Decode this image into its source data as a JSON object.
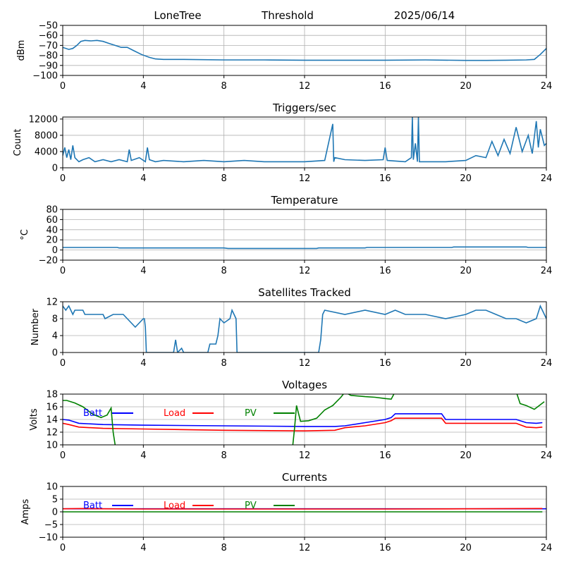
{
  "header": {
    "site": "LoneTree",
    "mode": "Threshold",
    "date": "2025/06/14"
  },
  "colors": {
    "series": "#1f77b4",
    "batt": "#0000ff",
    "load": "#ff0000",
    "pv": "#008000"
  },
  "chart_data": [
    {
      "id": "dbm",
      "type": "line",
      "title": "",
      "ylabel": "dBm",
      "xlim": [
        0,
        24
      ],
      "ylim": [
        -100,
        -50
      ],
      "xticks": [
        0,
        4,
        8,
        12,
        16,
        20,
        24
      ],
      "yticks": [
        -100,
        -90,
        -80,
        -70,
        -60,
        -50
      ],
      "ytick_labels": [
        "−100",
        "−90",
        "−80",
        "−70",
        "−60",
        "−50"
      ],
      "grid": true,
      "series": [
        {
          "color": "#1f77b4",
          "x": [
            0,
            0.3,
            0.5,
            0.7,
            0.9,
            1.1,
            1.4,
            1.7,
            2.0,
            2.3,
            2.6,
            2.9,
            3.2,
            3.5,
            3.9,
            4.3,
            4.6,
            5.0,
            6,
            8,
            10,
            12,
            14,
            16,
            18,
            20,
            21,
            22,
            23,
            23.4,
            23.7,
            24
          ],
          "y": [
            -72,
            -74,
            -73,
            -70,
            -66,
            -65,
            -65.5,
            -65,
            -66,
            -68,
            -70,
            -72,
            -72,
            -75,
            -79,
            -82,
            -83.5,
            -84,
            -84,
            -84.5,
            -84.5,
            -84.8,
            -84.8,
            -84.8,
            -84.5,
            -85,
            -85,
            -84.8,
            -84.5,
            -84,
            -79,
            -73
          ]
        }
      ]
    },
    {
      "id": "triggers",
      "type": "line",
      "title": "Triggers/sec",
      "ylabel": "Count",
      "xlim": [
        0,
        24
      ],
      "ylim": [
        0,
        12500
      ],
      "xticks": [
        0,
        4,
        8,
        12,
        16,
        20,
        24
      ],
      "yticks": [
        0,
        4000,
        8000,
        12000
      ],
      "ytick_labels": [
        "0",
        "4000",
        "8000",
        "12000"
      ],
      "grid": true,
      "series": [
        {
          "color": "#1f77b4",
          "x": [
            0,
            0.1,
            0.2,
            0.3,
            0.4,
            0.5,
            0.6,
            0.8,
            1.0,
            1.3,
            1.6,
            2.0,
            2.4,
            2.8,
            3.2,
            3.3,
            3.4,
            3.8,
            4.1,
            4.2,
            4.3,
            4.6,
            5.0,
            6.0,
            7.0,
            8.0,
            9.0,
            10.0,
            11.0,
            12.0,
            13.0,
            13.4,
            13.45,
            13.5,
            14.0,
            15.0,
            15.9,
            16.0,
            16.1,
            17.0,
            17.3,
            17.35,
            17.4,
            17.5,
            17.6,
            17.65,
            17.7,
            18.0,
            19.0,
            20.0,
            20.5,
            21.0,
            21.3,
            21.6,
            21.9,
            22.2,
            22.5,
            22.8,
            23.1,
            23.3,
            23.5,
            23.6,
            23.7,
            23.9,
            24
          ],
          "y": [
            3000,
            5000,
            2500,
            4500,
            2000,
            5500,
            2500,
            1500,
            2000,
            2500,
            1500,
            2000,
            1500,
            2000,
            1500,
            4500,
            1800,
            2500,
            1500,
            5000,
            2000,
            1500,
            1800,
            1500,
            1800,
            1500,
            1800,
            1500,
            1500,
            1500,
            1800,
            10800,
            1500,
            2500,
            2000,
            1800,
            2000,
            5000,
            1800,
            1500,
            2500,
            12500,
            2000,
            6000,
            1500,
            12500,
            1500,
            1500,
            1500,
            1800,
            3000,
            2500,
            6500,
            3000,
            7000,
            3500,
            10000,
            4000,
            8000,
            3500,
            11500,
            5000,
            9500,
            5500,
            6000
          ]
        }
      ]
    },
    {
      "id": "temperature",
      "type": "line",
      "title": "Temperature",
      "ylabel": "°C",
      "xlim": [
        0,
        24
      ],
      "ylim": [
        -20,
        80
      ],
      "xticks": [
        0,
        4,
        8,
        12,
        16,
        20,
        24
      ],
      "yticks": [
        -20,
        0,
        20,
        40,
        60,
        80
      ],
      "ytick_labels": [
        "−20",
        "0",
        "20",
        "40",
        "60",
        "80"
      ],
      "grid": true,
      "series": [
        {
          "color": "#1f77b4",
          "x": [
            0,
            2.7,
            2.8,
            8,
            8.2,
            12.6,
            12.7,
            15,
            15.1,
            19.3,
            19.4,
            23,
            23.1,
            24
          ],
          "y": [
            5,
            5,
            4,
            4,
            3,
            3,
            4,
            4,
            5,
            5,
            6,
            6,
            5,
            5
          ]
        }
      ]
    },
    {
      "id": "satellites",
      "type": "line",
      "title": "Satellites Tracked",
      "ylabel": "Number",
      "xlim": [
        0,
        24
      ],
      "ylim": [
        0,
        12
      ],
      "xticks": [
        0,
        4,
        8,
        12,
        16,
        20,
        24
      ],
      "yticks": [
        0,
        4,
        8,
        12
      ],
      "ytick_labels": [
        "0",
        "4",
        "8",
        "12"
      ],
      "grid": true,
      "series": [
        {
          "color": "#1f77b4",
          "x": [
            0,
            0.15,
            0.3,
            0.5,
            0.6,
            1.0,
            1.1,
            2.0,
            2.1,
            2.5,
            3.0,
            3.2,
            3.4,
            3.6,
            3.8,
            4.0,
            4.05,
            4.1,
            4.15,
            5.5,
            5.6,
            5.7,
            5.9,
            6.0,
            6.5,
            7.2,
            7.3,
            7.6,
            7.7,
            7.8,
            8.0,
            8.3,
            8.4,
            8.5,
            8.6,
            8.65,
            12.7,
            12.8,
            12.9,
            13.0,
            14.0,
            15.0,
            16.0,
            16.5,
            17.0,
            18.0,
            19.0,
            20.0,
            20.5,
            21.0,
            21.5,
            22.0,
            22.5,
            23.0,
            23.5,
            23.7,
            24
          ],
          "y": [
            11,
            10,
            11,
            9,
            10,
            10,
            9,
            9,
            8,
            9,
            9,
            8,
            7,
            6,
            7,
            8,
            8,
            6,
            0,
            0,
            3,
            0,
            1,
            0,
            0,
            0,
            2,
            2,
            4,
            8,
            7,
            8,
            10,
            9,
            8,
            0,
            0,
            3,
            9,
            10,
            9,
            10,
            9,
            10,
            9,
            9,
            8,
            9,
            10,
            10,
            9,
            8,
            8,
            7,
            8,
            11,
            8
          ]
        }
      ]
    },
    {
      "id": "voltages",
      "type": "line",
      "title": "Voltages",
      "ylabel": "Volts",
      "xlim": [
        0,
        24
      ],
      "ylim": [
        10,
        18
      ],
      "xticks": [
        0,
        4,
        8,
        12,
        16,
        20,
        24
      ],
      "yticks": [
        10,
        12,
        14,
        16,
        18
      ],
      "ytick_labels": [
        "10",
        "12",
        "14",
        "16",
        "18"
      ],
      "grid": true,
      "legend": "top",
      "series": [
        {
          "name": "Batt",
          "color": "#0000ff",
          "x": [
            0,
            0.3,
            0.8,
            2,
            4,
            8,
            12,
            13.5,
            14,
            15,
            16,
            16.3,
            16.5,
            18.8,
            19,
            22.5,
            23,
            23.5,
            23.8
          ],
          "y": [
            14,
            13.9,
            13.4,
            13.2,
            13.1,
            13,
            12.9,
            12.9,
            13,
            13.5,
            14,
            14.3,
            14.9,
            14.9,
            14,
            14,
            13.5,
            13.4,
            13.5
          ]
        },
        {
          "name": "Load",
          "color": "#ff0000",
          "x": [
            0,
            0.3,
            0.8,
            2,
            4,
            8,
            12,
            13.5,
            14,
            15,
            16,
            16.3,
            16.5,
            18.8,
            19,
            22.5,
            23,
            23.5,
            23.8
          ],
          "y": [
            13.4,
            13.2,
            12.8,
            12.6,
            12.5,
            12.3,
            12.2,
            12.3,
            12.7,
            13,
            13.5,
            13.8,
            14.2,
            14.2,
            13.4,
            13.4,
            12.8,
            12.7,
            12.8
          ]
        },
        {
          "name": "PV",
          "color": "#008000",
          "x": [
            0,
            0.2,
            0.6,
            1,
            1.5,
            1.9,
            2.2,
            2.4,
            2.5,
            2.6,
            2.7,
            11.4,
            11.5,
            11.6,
            11.8,
            12.2,
            12.6,
            13.0,
            13.4,
            13.8,
            14.0,
            14.3,
            15,
            15.5,
            16,
            16.3,
            16.5,
            22.5,
            22.7,
            23,
            23.4,
            23.9
          ],
          "y": [
            17,
            17,
            16.6,
            16,
            14.8,
            14.3,
            14.7,
            15.8,
            12,
            10,
            9.5,
            9.5,
            12.5,
            16.2,
            13.7,
            13.8,
            14.2,
            15.5,
            16.2,
            17.5,
            18.3,
            17.8,
            17.6,
            17.5,
            17.3,
            17.2,
            18.4,
            18.4,
            16.5,
            16.2,
            15.6,
            16.8
          ]
        }
      ]
    },
    {
      "id": "currents",
      "type": "line",
      "title": "Currents",
      "ylabel": "Amps",
      "xlim": [
        0,
        24
      ],
      "ylim": [
        -10,
        10
      ],
      "xticks": [
        0,
        4,
        8,
        12,
        16,
        20,
        24
      ],
      "yticks": [
        -10,
        -5,
        0,
        5,
        10
      ],
      "ytick_labels": [
        "−10",
        "−5",
        "0",
        "5",
        "10"
      ],
      "grid": true,
      "legend": "top",
      "series": [
        {
          "name": "Batt",
          "color": "#0000ff",
          "x": [
            0,
            24
          ],
          "y": [
            1.2,
            1.2
          ]
        },
        {
          "name": "Load",
          "color": "#ff0000",
          "x": [
            0,
            1,
            2,
            4,
            8,
            12,
            16,
            20,
            23.8
          ],
          "y": [
            1.2,
            1.3,
            1.2,
            1.1,
            1.1,
            1.1,
            1.1,
            1.2,
            1.3
          ]
        },
        {
          "name": "PV",
          "color": "#008000",
          "x": [
            0,
            23.8
          ],
          "y": [
            0,
            0
          ]
        }
      ]
    }
  ]
}
